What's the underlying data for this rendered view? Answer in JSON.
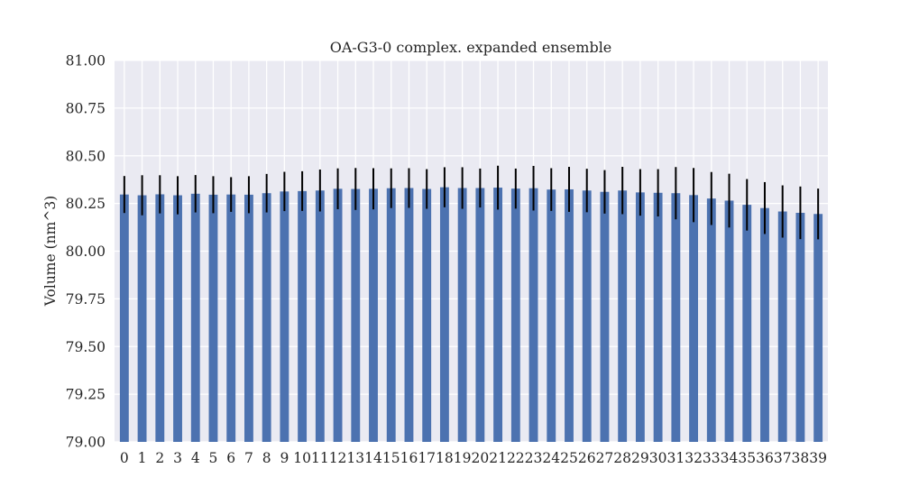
{
  "chart_data": {
    "type": "bar",
    "title": "OA-G3-0 complex. expanded ensemble",
    "xlabel": "",
    "ylabel": "Volume (nm^3)",
    "ylim": [
      79.0,
      81.0
    ],
    "yticks": [
      "79.00",
      "79.25",
      "79.50",
      "79.75",
      "80.00",
      "80.25",
      "80.50",
      "80.75",
      "81.00"
    ],
    "categories": [
      "0",
      "1",
      "2",
      "3",
      "4",
      "5",
      "6",
      "7",
      "8",
      "9",
      "10",
      "11",
      "12",
      "13",
      "14",
      "15",
      "16",
      "17",
      "18",
      "19",
      "20",
      "21",
      "22",
      "23",
      "24",
      "25",
      "26",
      "27",
      "28",
      "29",
      "30",
      "31",
      "32",
      "33",
      "34",
      "35",
      "36",
      "37",
      "38",
      "39"
    ],
    "values": [
      80.297,
      80.293,
      80.298,
      80.293,
      80.301,
      80.296,
      80.297,
      80.296,
      80.304,
      80.313,
      80.315,
      80.318,
      80.327,
      80.326,
      80.327,
      80.33,
      80.331,
      80.326,
      80.335,
      80.331,
      80.331,
      80.333,
      80.328,
      80.33,
      80.323,
      80.324,
      80.318,
      80.311,
      80.318,
      80.308,
      80.306,
      80.304,
      80.294,
      80.276,
      80.265,
      80.243,
      80.226,
      80.208,
      80.201,
      80.195
    ],
    "errors": [
      0.097,
      0.105,
      0.1,
      0.1,
      0.098,
      0.097,
      0.091,
      0.097,
      0.101,
      0.103,
      0.104,
      0.11,
      0.107,
      0.11,
      0.108,
      0.104,
      0.104,
      0.104,
      0.105,
      0.109,
      0.102,
      0.115,
      0.105,
      0.117,
      0.112,
      0.118,
      0.114,
      0.114,
      0.124,
      0.122,
      0.124,
      0.137,
      0.142,
      0.139,
      0.141,
      0.135,
      0.136,
      0.137,
      0.138,
      0.133
    ],
    "bar_color": "#4c72b0",
    "error_color": "#000000",
    "background": "#eaeaf2",
    "grid": true,
    "grid_color": "#ffffff"
  }
}
